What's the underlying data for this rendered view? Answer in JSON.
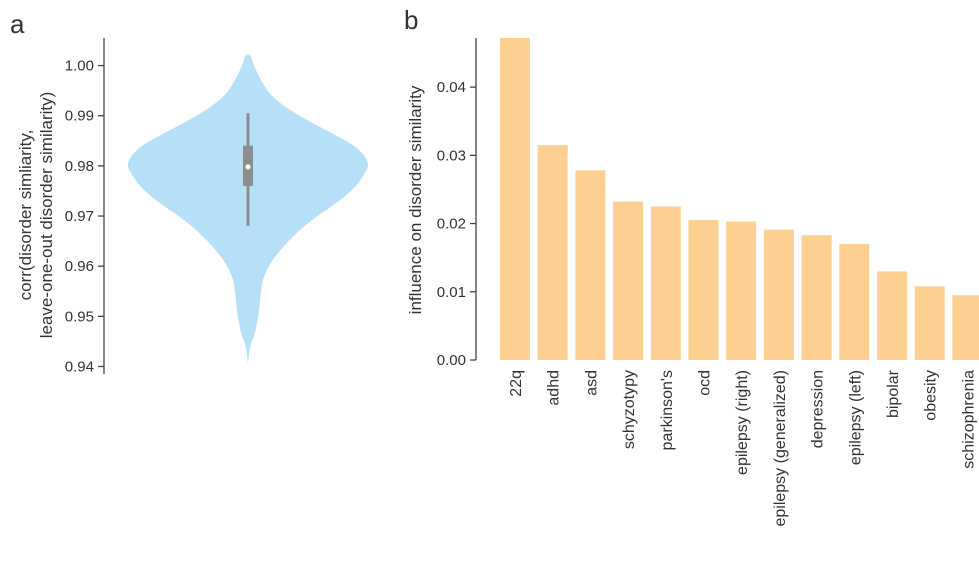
{
  "chart_data": [
    {
      "panel": "a",
      "type": "violin",
      "ylabel_line1": "corr(disorder simliarity,",
      "ylabel_line2": "leave-one-out disorder similarity)",
      "ylim": [
        0.9385,
        1.0055
      ],
      "yticks": [
        "0.94",
        "0.95",
        "0.96",
        "0.97",
        "0.98",
        "0.99",
        "1.00"
      ],
      "ytick_values": [
        0.94,
        0.95,
        0.96,
        0.97,
        0.98,
        0.99,
        1.0
      ],
      "range": [
        0.941,
        1.002
      ],
      "median": 0.9798,
      "quartiles": [
        0.976,
        0.984
      ],
      "whiskers": [
        0.968,
        0.9905
      ],
      "density": [
        [
          0.941,
          0.002
        ],
        [
          0.944,
          0.02
        ],
        [
          0.947,
          0.06
        ],
        [
          0.95,
          0.085
        ],
        [
          0.953,
          0.1
        ],
        [
          0.956,
          0.115
        ],
        [
          0.958,
          0.135
        ],
        [
          0.96,
          0.175
        ],
        [
          0.962,
          0.23
        ],
        [
          0.964,
          0.3
        ],
        [
          0.966,
          0.38
        ],
        [
          0.968,
          0.47
        ],
        [
          0.97,
          0.58
        ],
        [
          0.972,
          0.7
        ],
        [
          0.974,
          0.81
        ],
        [
          0.976,
          0.9
        ],
        [
          0.978,
          0.96
        ],
        [
          0.98,
          1.0
        ],
        [
          0.982,
          0.97
        ],
        [
          0.984,
          0.88
        ],
        [
          0.986,
          0.74
        ],
        [
          0.988,
          0.58
        ],
        [
          0.99,
          0.43
        ],
        [
          0.992,
          0.3
        ],
        [
          0.994,
          0.2
        ],
        [
          0.996,
          0.135
        ],
        [
          0.998,
          0.09
        ],
        [
          1.0,
          0.05
        ],
        [
          1.002,
          0.02
        ]
      ],
      "colors": {
        "fill": "#b6dff8",
        "box": "#8d8d8d",
        "median": "#ffffff"
      }
    },
    {
      "panel": "b",
      "type": "bar",
      "ylabel": "influence on disorder similarity",
      "ylim": [
        0,
        0.0472
      ],
      "yticks": [
        "0.00",
        "0.01",
        "0.02",
        "0.03",
        "0.04"
      ],
      "ytick_values": [
        0,
        0.01,
        0.02,
        0.03,
        0.04
      ],
      "categories": [
        "22q",
        "adhd",
        "asd",
        "schyzotypy",
        "parkinson's",
        "ocd",
        "epilepsy (right)",
        "epilepsy (generalized)",
        "depression",
        "epilepsy (left)",
        "bipolar",
        "obesity",
        "schizophrenia"
      ],
      "values": [
        0.0472,
        0.0315,
        0.0278,
        0.0232,
        0.0225,
        0.0205,
        0.0203,
        0.0191,
        0.0183,
        0.017,
        0.013,
        0.0108,
        0.0095
      ],
      "colors": {
        "bar": "#fdd092"
      }
    }
  ]
}
